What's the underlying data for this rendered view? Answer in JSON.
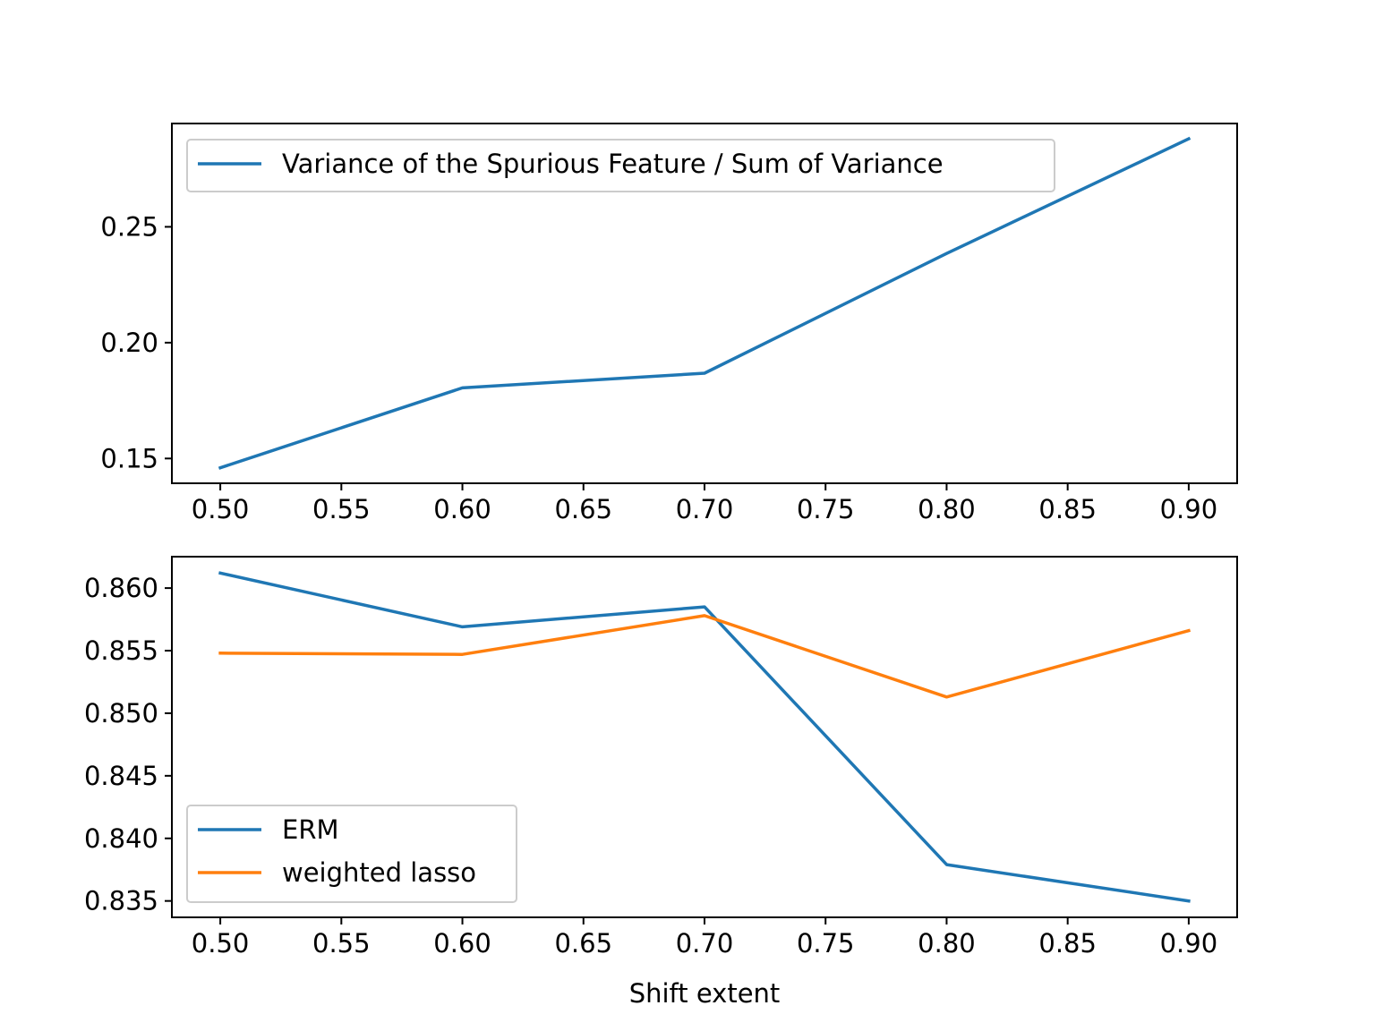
{
  "chart_data": [
    {
      "type": "line",
      "x": [
        0.5,
        0.6,
        0.7,
        0.8,
        0.9
      ],
      "series": [
        {
          "name": "Variance of the Spurious Feature / Sum of Variance",
          "color": "#1f77b4",
          "values": [
            0.146,
            0.1805,
            0.1868,
            0.2385,
            0.288
          ]
        }
      ],
      "xlabel": "",
      "ylabel": "",
      "xlim": [
        0.48,
        0.92
      ],
      "ylim": [
        0.1393,
        0.2946
      ],
      "xticks": [
        0.5,
        0.55,
        0.6,
        0.65,
        0.7,
        0.75,
        0.8,
        0.85,
        0.9
      ],
      "xtick_labels": [
        "0.50",
        "0.55",
        "0.60",
        "0.65",
        "0.70",
        "0.75",
        "0.80",
        "0.85",
        "0.90"
      ],
      "yticks": [
        0.15,
        0.2,
        0.25
      ],
      "ytick_labels": [
        "0.15",
        "0.20",
        "0.25"
      ],
      "grid": false,
      "legend": "upper-left"
    },
    {
      "type": "line",
      "x": [
        0.5,
        0.6,
        0.7,
        0.8,
        0.9
      ],
      "series": [
        {
          "name": "ERM",
          "color": "#1f77b4",
          "values": [
            0.8612,
            0.8569,
            0.8585,
            0.8379,
            0.835
          ]
        },
        {
          "name": "weighted lasso",
          "color": "#ff7f0e",
          "values": [
            0.8548,
            0.8547,
            0.8578,
            0.8513,
            0.8566
          ]
        }
      ],
      "xlabel": "Shift extent",
      "ylabel": "",
      "xlim": [
        0.48,
        0.92
      ],
      "ylim": [
        0.83369,
        0.86251
      ],
      "xticks": [
        0.5,
        0.55,
        0.6,
        0.65,
        0.7,
        0.75,
        0.8,
        0.85,
        0.9
      ],
      "xtick_labels": [
        "0.50",
        "0.55",
        "0.60",
        "0.65",
        "0.70",
        "0.75",
        "0.80",
        "0.85",
        "0.90"
      ],
      "yticks": [
        0.835,
        0.84,
        0.845,
        0.85,
        0.855,
        0.86
      ],
      "ytick_labels": [
        "0.835",
        "0.840",
        "0.845",
        "0.850",
        "0.855",
        "0.860"
      ],
      "grid": false,
      "legend": "lower-left"
    }
  ]
}
